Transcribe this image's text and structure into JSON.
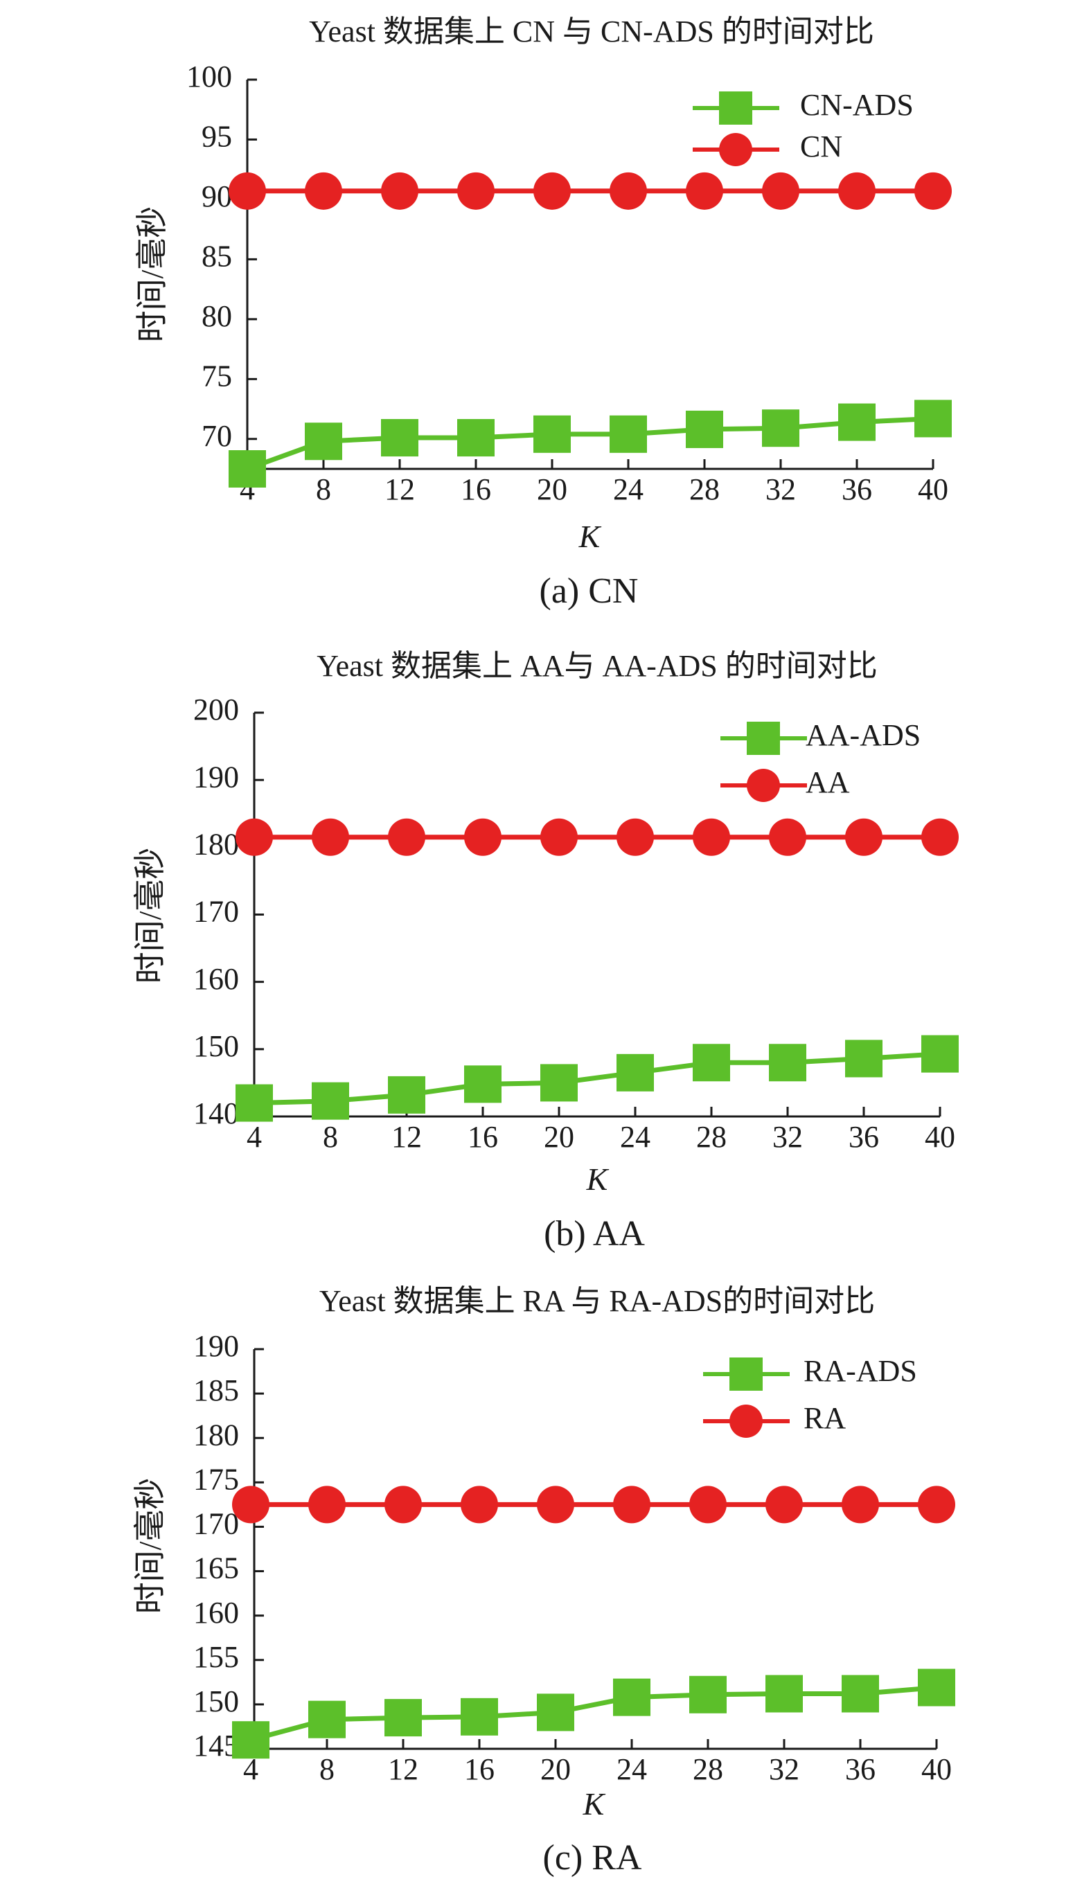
{
  "colors": {
    "ads": "#5cbf2a",
    "baseline": "#e52222",
    "axis": "#1a1a1a"
  },
  "chart_data": [
    {
      "type": "line",
      "title": "Yeast 数据集上 CN 与 CN-ADS 的时间对比",
      "caption": "(a) CN",
      "xlabel": "K",
      "ylabel": "时间/毫秒",
      "categories": [
        4,
        8,
        12,
        16,
        20,
        24,
        28,
        32,
        36,
        40
      ],
      "yticks": [
        70,
        75,
        80,
        85,
        90,
        95,
        100
      ],
      "ylim": [
        67.5,
        100
      ],
      "legend_position": "top-right",
      "series": [
        {
          "name": "CN-ADS",
          "marker": "square",
          "color": "#5cbf2a",
          "values": [
            67.5,
            69.8,
            70.1,
            70.1,
            70.4,
            70.4,
            70.8,
            70.9,
            71.4,
            71.7
          ]
        },
        {
          "name": "CN",
          "marker": "circle",
          "color": "#e52222",
          "values": [
            90.7,
            90.7,
            90.7,
            90.7,
            90.7,
            90.7,
            90.7,
            90.7,
            90.7,
            90.7
          ]
        }
      ]
    },
    {
      "type": "line",
      "title": "Yeast 数据集上 AA与 AA-ADS 的时间对比",
      "caption": "(b) AA",
      "xlabel": "K",
      "ylabel": "时间/毫秒",
      "categories": [
        4,
        8,
        12,
        16,
        20,
        24,
        28,
        32,
        36,
        40
      ],
      "yticks": [
        140,
        150,
        160,
        170,
        180,
        190,
        200
      ],
      "ylim": [
        140,
        200
      ],
      "legend_position": "top-right",
      "series": [
        {
          "name": "AA-ADS",
          "marker": "square",
          "color": "#5cbf2a",
          "values": [
            142.0,
            142.3,
            143.2,
            144.8,
            145.0,
            146.5,
            148.0,
            148.0,
            148.6,
            149.3
          ]
        },
        {
          "name": "AA",
          "marker": "circle",
          "color": "#e52222",
          "values": [
            181.5,
            181.5,
            181.5,
            181.5,
            181.5,
            181.5,
            181.5,
            181.5,
            181.5,
            181.5
          ]
        }
      ]
    },
    {
      "type": "line",
      "title": "Yeast 数据集上 RA 与 RA-ADS的时间对比",
      "caption": "(c) RA",
      "xlabel": "K",
      "ylabel": "时间/毫秒",
      "categories": [
        4,
        8,
        12,
        16,
        20,
        24,
        28,
        32,
        36,
        40
      ],
      "yticks": [
        145,
        150,
        155,
        160,
        165,
        170,
        175,
        180,
        185,
        190
      ],
      "ylim": [
        145,
        190
      ],
      "legend_position": "top-right",
      "series": [
        {
          "name": "RA-ADS",
          "marker": "square",
          "color": "#5cbf2a",
          "values": [
            146.0,
            148.3,
            148.5,
            148.6,
            149.1,
            150.8,
            151.1,
            151.2,
            151.2,
            151.9
          ]
        },
        {
          "name": "RA",
          "marker": "circle",
          "color": "#e52222",
          "values": [
            172.5,
            172.5,
            172.5,
            172.5,
            172.5,
            172.5,
            172.5,
            172.5,
            172.5,
            172.5
          ]
        }
      ]
    }
  ]
}
